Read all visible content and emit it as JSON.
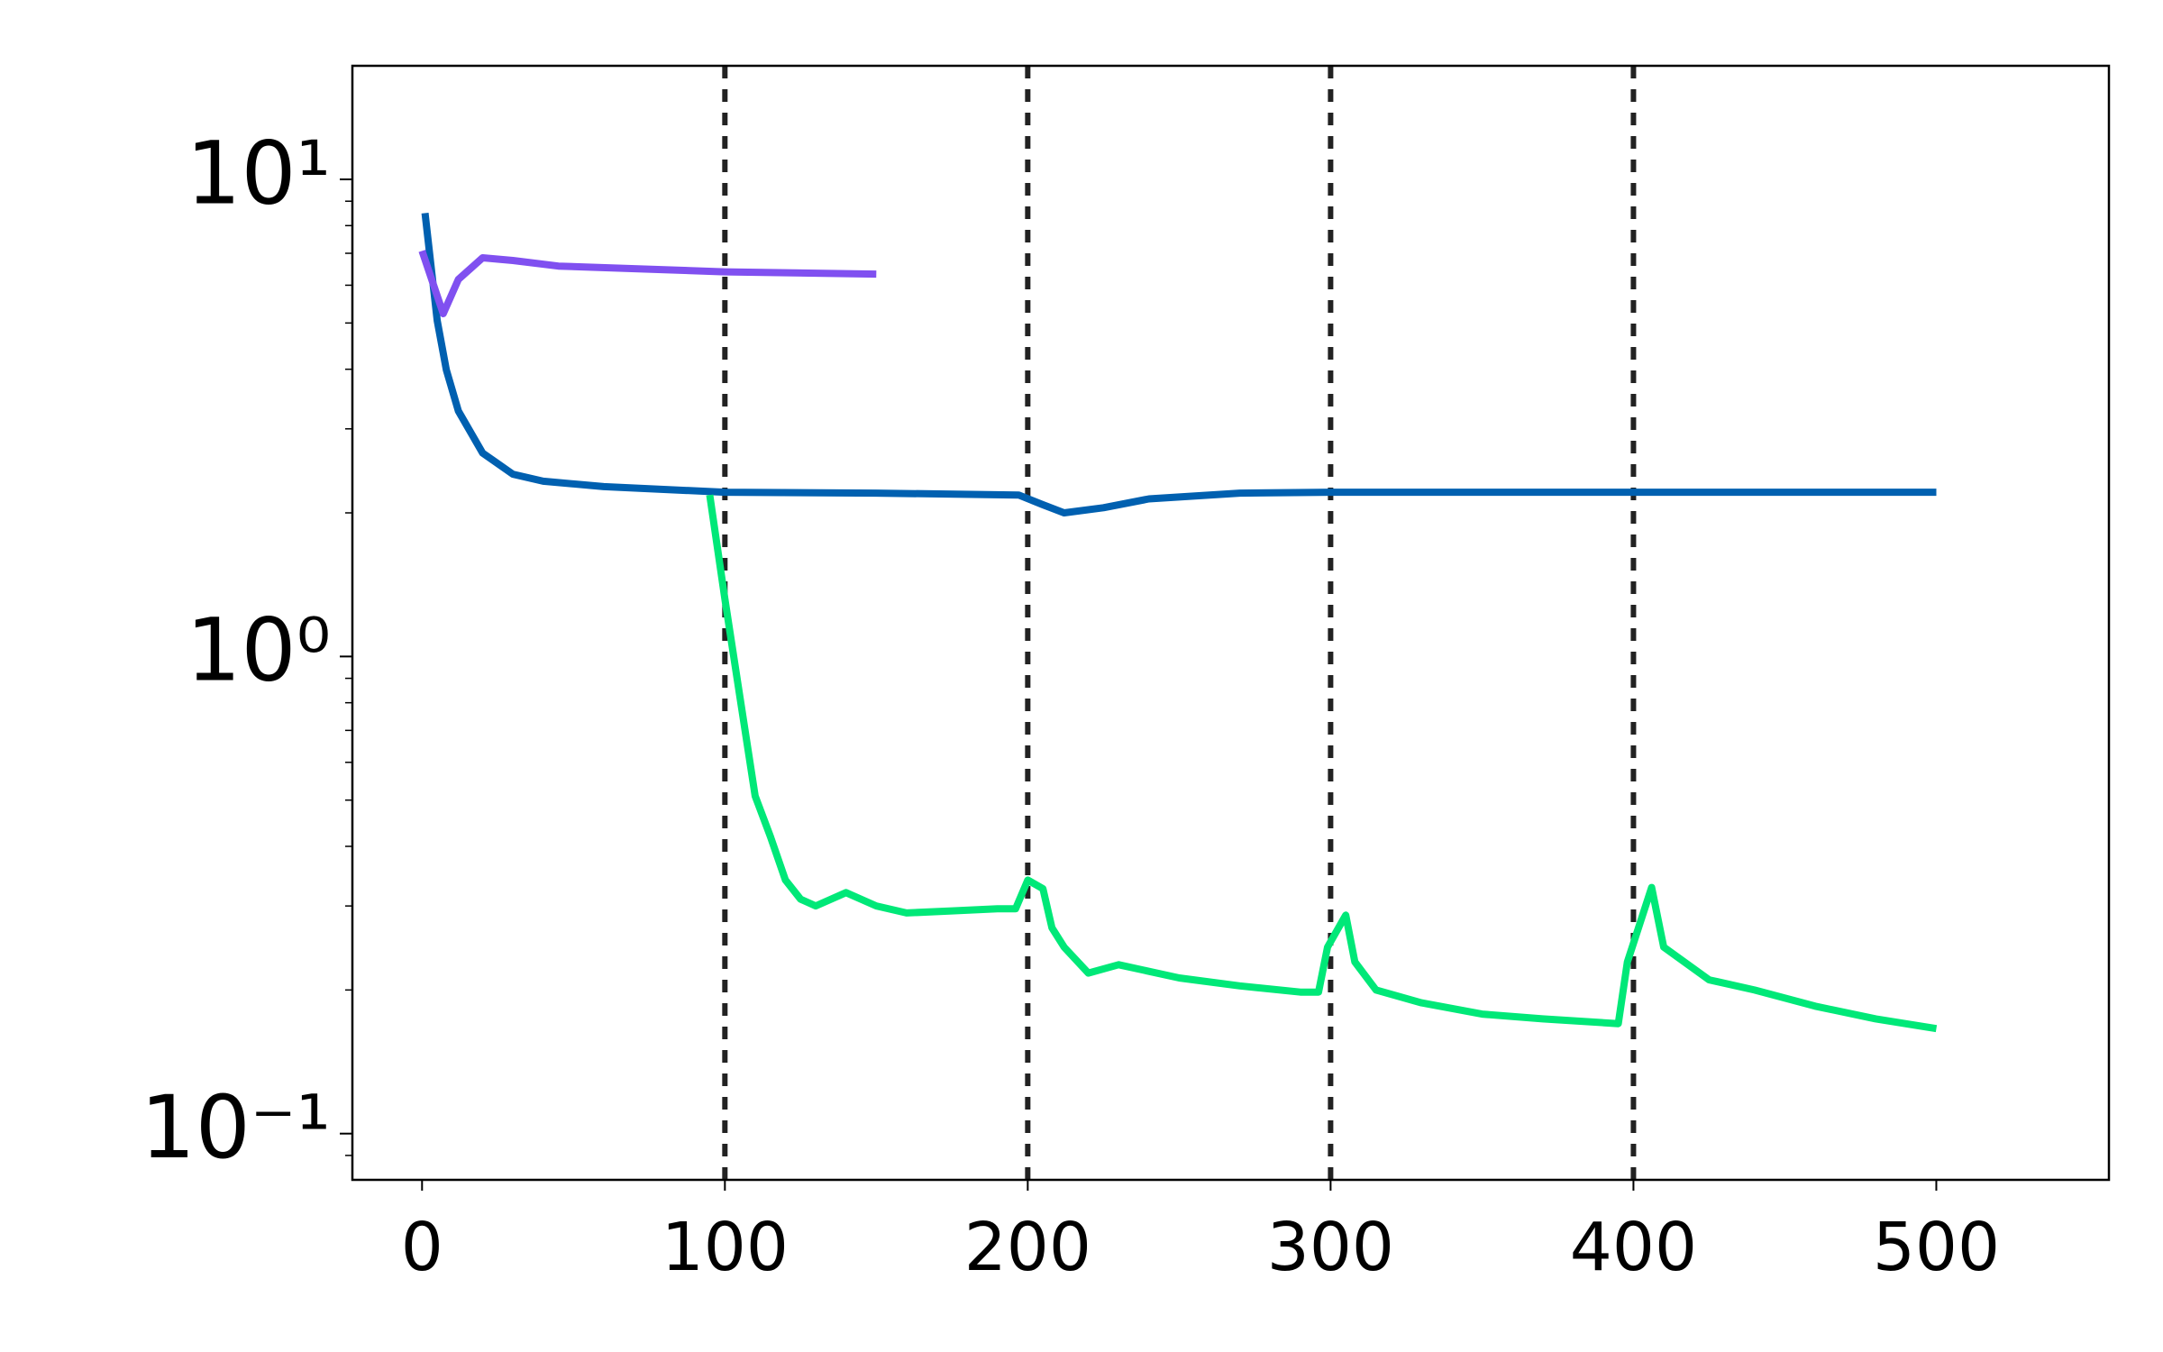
{
  "chart_data": {
    "type": "line",
    "xlim": [
      -23,
      557
    ],
    "xticks": [
      0,
      100,
      200,
      300,
      400,
      500
    ],
    "ylim": [
      0.08,
      17.3
    ],
    "log_y": true,
    "yticks": [
      {
        "value": 0.1,
        "label": "10⁻¹"
      },
      {
        "value": 1,
        "label": "10⁰"
      },
      {
        "value": 10,
        "label": "10¹"
      }
    ],
    "yminorticks": [
      0.09,
      0.2,
      0.3,
      0.4,
      0.5,
      0.6,
      0.7,
      0.8,
      0.9,
      2,
      3,
      4,
      5,
      6,
      7,
      8,
      9
    ],
    "vlines": [
      100,
      200,
      300,
      400
    ],
    "series": [
      {
        "color": "#0060b0",
        "x": [
          1,
          5,
          8,
          12,
          20,
          30,
          40,
          60,
          100,
          150,
          197,
          205,
          212,
          225,
          240,
          270,
          300,
          500
        ],
        "values": [
          8.5,
          5.06,
          3.99,
          3.27,
          2.67,
          2.41,
          2.33,
          2.27,
          2.21,
          2.2,
          2.18,
          2.08,
          2.0,
          2.05,
          2.14,
          2.2,
          2.21,
          2.21
        ]
      },
      {
        "color": "#8050f0",
        "x": [
          0,
          7,
          12,
          20,
          30,
          45,
          100,
          150
        ],
        "values": [
          7.08,
          5.23,
          6.17,
          6.85,
          6.76,
          6.58,
          6.4,
          6.33
        ]
      },
      {
        "color": "#00e878",
        "x": [
          95,
          100,
          105,
          110,
          115,
          120,
          125,
          130,
          140,
          150,
          160,
          175,
          190,
          196,
          200,
          205,
          208,
          212,
          220,
          230,
          250,
          270,
          290,
          296,
          299,
          305,
          308,
          315,
          330,
          350,
          370,
          395,
          398,
          406,
          410,
          425,
          440,
          460,
          480,
          500
        ],
        "values": [
          2.18,
          1.32,
          0.82,
          0.51,
          0.42,
          0.34,
          0.31,
          0.3,
          0.32,
          0.3,
          0.29,
          0.293,
          0.296,
          0.296,
          0.34,
          0.326,
          0.27,
          0.246,
          0.217,
          0.226,
          0.212,
          0.204,
          0.198,
          0.198,
          0.246,
          0.287,
          0.229,
          0.2,
          0.188,
          0.178,
          0.174,
          0.17,
          0.229,
          0.328,
          0.246,
          0.21,
          0.2,
          0.185,
          0.174,
          0.166
        ]
      }
    ]
  }
}
